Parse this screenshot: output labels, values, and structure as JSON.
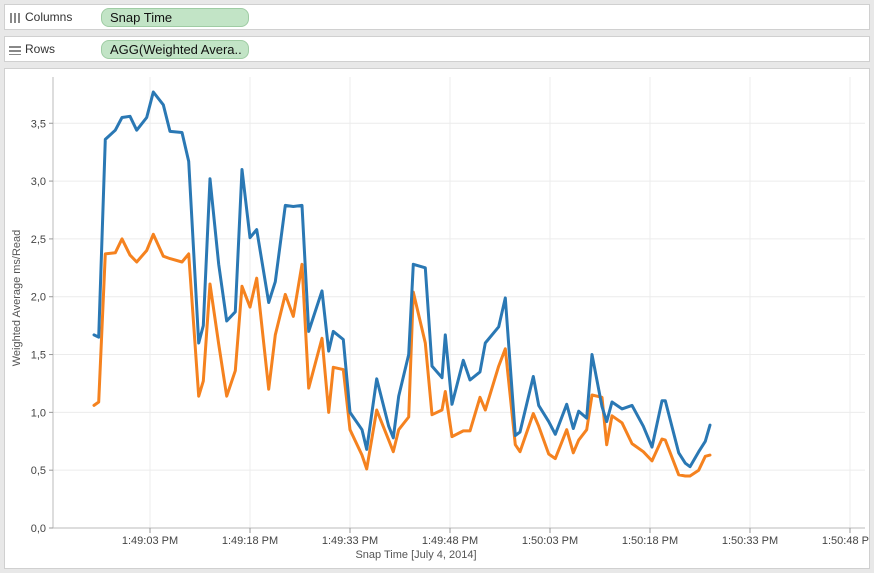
{
  "shelves": {
    "columns": {
      "label": "Columns",
      "pill": "Snap Time"
    },
    "rows": {
      "label": "Rows",
      "pill": "AGG(Weighted Avera.."
    }
  },
  "colors": {
    "series_blue": "#2a78b4",
    "series_orange": "#f5821f",
    "pill": "#c2e4c6"
  },
  "chart_data": {
    "type": "line",
    "title": "",
    "xlabel": "Snap Time [July 4, 2014]",
    "ylabel": "Weighted Average ms/Read",
    "x_ticks": [
      "1:49:03 PM",
      "1:49:18 PM",
      "1:49:33 PM",
      "1:49:48 PM",
      "1:50:03 PM",
      "1:50:18 PM",
      "1:50:33 PM",
      "1:50:48 PM"
    ],
    "y_ticks": [
      "0,0",
      "0,5",
      "1,0",
      "1,5",
      "2,0",
      "2,5",
      "3,0",
      "3,5"
    ],
    "ylim": [
      0,
      3.9
    ],
    "xlim_seconds": [
      48.2,
      50.5
    ],
    "x_unit": "seconds after 1:49 PM",
    "grid": true,
    "legend": "none",
    "series": [
      {
        "color": "#2a78b4",
        "points": [
          [
            54.6,
            1.67
          ],
          [
            55.3,
            1.65
          ],
          [
            56.3,
            3.36
          ],
          [
            57.8,
            3.44
          ],
          [
            58.8,
            3.55
          ],
          [
            60.0,
            3.56
          ],
          [
            61.0,
            3.44
          ],
          [
            62.5,
            3.55
          ],
          [
            63.5,
            3.77
          ],
          [
            65.0,
            3.66
          ],
          [
            66.0,
            3.43
          ],
          [
            67.8,
            3.42
          ],
          [
            68.8,
            3.17
          ],
          [
            70.3,
            1.6
          ],
          [
            71.0,
            1.75
          ],
          [
            72.0,
            3.02
          ],
          [
            73.3,
            2.28
          ],
          [
            74.5,
            1.79
          ],
          [
            75.8,
            1.87
          ],
          [
            76.8,
            3.1
          ],
          [
            78.0,
            2.51
          ],
          [
            79.0,
            2.58
          ],
          [
            80.8,
            1.95
          ],
          [
            81.8,
            2.13
          ],
          [
            83.3,
            2.79
          ],
          [
            84.5,
            2.78
          ],
          [
            85.8,
            2.79
          ],
          [
            86.8,
            1.7
          ],
          [
            88.8,
            2.05
          ],
          [
            89.8,
            1.53
          ],
          [
            90.5,
            1.7
          ],
          [
            92.0,
            1.63
          ],
          [
            93.0,
            1.0
          ],
          [
            94.8,
            0.85
          ],
          [
            95.5,
            0.68
          ],
          [
            97.0,
            1.29
          ],
          [
            98.8,
            0.88
          ],
          [
            99.5,
            0.78
          ],
          [
            100.3,
            1.14
          ],
          [
            101.8,
            1.5
          ],
          [
            102.5,
            2.28
          ],
          [
            104.3,
            2.25
          ],
          [
            105.3,
            1.4
          ],
          [
            106.8,
            1.3
          ],
          [
            107.3,
            1.67
          ],
          [
            108.3,
            1.07
          ],
          [
            110.0,
            1.45
          ],
          [
            111.0,
            1.28
          ],
          [
            112.5,
            1.35
          ],
          [
            113.3,
            1.6
          ],
          [
            115.3,
            1.74
          ],
          [
            116.3,
            1.99
          ],
          [
            117.8,
            0.8
          ],
          [
            118.5,
            0.83
          ],
          [
            120.5,
            1.31
          ],
          [
            121.3,
            1.06
          ],
          [
            122.8,
            0.92
          ],
          [
            123.8,
            0.81
          ],
          [
            125.5,
            1.07
          ],
          [
            126.5,
            0.86
          ],
          [
            127.3,
            1.01
          ],
          [
            128.5,
            0.95
          ],
          [
            129.3,
            1.5
          ],
          [
            130.8,
            1.05
          ],
          [
            131.5,
            0.92
          ],
          [
            132.3,
            1.09
          ],
          [
            133.8,
            1.03
          ],
          [
            135.3,
            1.06
          ],
          [
            137.0,
            0.88
          ],
          [
            138.3,
            0.7
          ],
          [
            139.8,
            1.1
          ],
          [
            140.3,
            1.1
          ],
          [
            142.3,
            0.65
          ],
          [
            143.3,
            0.56
          ],
          [
            144.0,
            0.53
          ],
          [
            145.3,
            0.66
          ],
          [
            146.3,
            0.75
          ],
          [
            147.0,
            0.89
          ]
        ]
      },
      {
        "color": "#f5821f",
        "points": [
          [
            54.6,
            1.06
          ],
          [
            55.3,
            1.09
          ],
          [
            56.3,
            2.37
          ],
          [
            57.8,
            2.38
          ],
          [
            58.8,
            2.5
          ],
          [
            60.0,
            2.36
          ],
          [
            61.0,
            2.3
          ],
          [
            62.5,
            2.4
          ],
          [
            63.5,
            2.54
          ],
          [
            65.0,
            2.35
          ],
          [
            66.0,
            2.33
          ],
          [
            67.8,
            2.3
          ],
          [
            68.8,
            2.37
          ],
          [
            70.3,
            1.14
          ],
          [
            71.0,
            1.27
          ],
          [
            72.0,
            2.11
          ],
          [
            73.3,
            1.59
          ],
          [
            74.5,
            1.14
          ],
          [
            75.8,
            1.36
          ],
          [
            76.8,
            2.09
          ],
          [
            78.0,
            1.91
          ],
          [
            79.0,
            2.16
          ],
          [
            80.8,
            1.2
          ],
          [
            81.8,
            1.67
          ],
          [
            83.3,
            2.02
          ],
          [
            84.5,
            1.83
          ],
          [
            85.8,
            2.28
          ],
          [
            86.8,
            1.21
          ],
          [
            88.8,
            1.64
          ],
          [
            89.8,
            1.0
          ],
          [
            90.5,
            1.39
          ],
          [
            92.0,
            1.37
          ],
          [
            93.0,
            0.85
          ],
          [
            94.8,
            0.63
          ],
          [
            95.5,
            0.51
          ],
          [
            97.0,
            1.02
          ],
          [
            98.8,
            0.76
          ],
          [
            99.5,
            0.66
          ],
          [
            100.3,
            0.85
          ],
          [
            101.8,
            0.96
          ],
          [
            102.5,
            2.04
          ],
          [
            104.3,
            1.6
          ],
          [
            105.3,
            0.98
          ],
          [
            106.8,
            1.02
          ],
          [
            107.3,
            1.18
          ],
          [
            108.3,
            0.79
          ],
          [
            110.0,
            0.84
          ],
          [
            111.0,
            0.84
          ],
          [
            112.5,
            1.13
          ],
          [
            113.3,
            1.02
          ],
          [
            115.3,
            1.4
          ],
          [
            116.3,
            1.55
          ],
          [
            117.8,
            0.72
          ],
          [
            118.5,
            0.66
          ],
          [
            120.5,
            0.99
          ],
          [
            121.3,
            0.88
          ],
          [
            122.8,
            0.64
          ],
          [
            123.8,
            0.6
          ],
          [
            125.5,
            0.85
          ],
          [
            126.5,
            0.65
          ],
          [
            127.3,
            0.76
          ],
          [
            128.5,
            0.85
          ],
          [
            129.3,
            1.15
          ],
          [
            130.8,
            1.13
          ],
          [
            131.5,
            0.72
          ],
          [
            132.3,
            0.97
          ],
          [
            133.8,
            0.91
          ],
          [
            135.3,
            0.73
          ],
          [
            137.0,
            0.66
          ],
          [
            138.3,
            0.58
          ],
          [
            139.8,
            0.77
          ],
          [
            140.3,
            0.76
          ],
          [
            142.3,
            0.46
          ],
          [
            143.3,
            0.45
          ],
          [
            144.0,
            0.45
          ],
          [
            145.3,
            0.5
          ],
          [
            146.3,
            0.62
          ],
          [
            147.0,
            0.63
          ]
        ]
      }
    ]
  }
}
